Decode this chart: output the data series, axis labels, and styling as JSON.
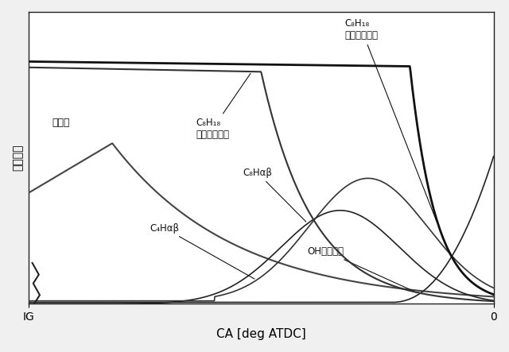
{
  "xlabel": "CA [deg ATDC]",
  "ylabel": "モル分率",
  "xlabel_fontsize": 11,
  "ylabel_fontsize": 10,
  "background_color": "#f0f0f0",
  "plot_bg_color": "#ffffff",
  "axis_color": "#222222",
  "xlim": [
    0,
    1
  ],
  "ylim": [
    0,
    1
  ],
  "xtick_labels": [
    "IG",
    "0"
  ],
  "label_c8h18_no": "C₈H₁₈\n（オゾン無）",
  "label_c8h18_oz": "C₈H₁₈\n（オゾン有）",
  "label_ozone": "オゾン",
  "label_c8hxx": "C₈Hαβ",
  "label_c4hxx": "C₄Hαβ",
  "label_oh": "OHラジカル"
}
